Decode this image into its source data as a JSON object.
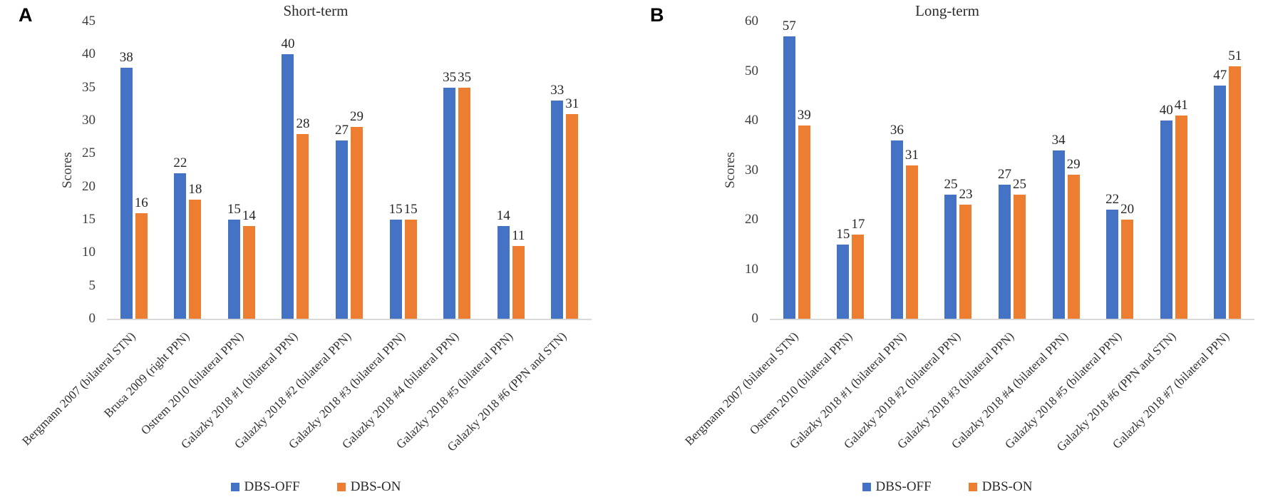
{
  "figure": {
    "ylabel_text": "Scores"
  },
  "chart_data": [
    {
      "type": "bar",
      "panel_label": "A",
      "title": "Short-term",
      "ylabel": "Scores",
      "ylim": [
        0,
        45
      ],
      "y_step": 5,
      "grid": false,
      "legend_position": "bottom",
      "categories": [
        "Bergmann 2007 (bilateral STN)",
        "Brusa 2009 (right PPN)",
        "Ostrem 2010 (bilateral PPN)",
        "Galazky 2018 #1 (bilateral PPN)",
        "Galazky 2018 #2 (bilateral PPN)",
        "Galazky 2018 #3 (bilateral PPN)",
        "Galazky 2018 #4 (bilateral PPN)",
        "Galazky 2018 #5 (bilateral PPN)",
        "Galazky 2018 #6 (PPN and STN)"
      ],
      "series": [
        {
          "name": "DBS-OFF",
          "color": "#4472C4",
          "values": [
            38,
            22,
            15,
            40,
            27,
            15,
            35,
            14,
            33
          ]
        },
        {
          "name": "DBS-ON",
          "color": "#ED7D31",
          "values": [
            16,
            18,
            14,
            28,
            29,
            15,
            35,
            11,
            31
          ]
        }
      ]
    },
    {
      "type": "bar",
      "panel_label": "B",
      "title": "Long-term",
      "ylabel": "Scores",
      "ylim": [
        0,
        60
      ],
      "y_step": 10,
      "grid": false,
      "legend_position": "bottom",
      "categories": [
        "Bergmann 2007 (bilateral STN)",
        "Ostrem 2010 (bilateral PPN)",
        "Galazky 2018 #1 (bilateral PPN)",
        "Galazky 2018 #2 (bilateral PPN)",
        "Galazky 2018 #3 (bilateral PPN)",
        "Galazky 2018 #4 (bilateral PPN)",
        "Galazky 2018 #5 (bilateral PPN)",
        "Galazky 2018 #6 (PPN and STN)",
        "Galazky 2018 #7 (bilateral PPN)"
      ],
      "series": [
        {
          "name": "DBS-OFF",
          "color": "#4472C4",
          "values": [
            57,
            15,
            36,
            25,
            27,
            34,
            22,
            40,
            47
          ]
        },
        {
          "name": "DBS-ON",
          "color": "#ED7D31",
          "values": [
            39,
            17,
            31,
            23,
            25,
            29,
            20,
            41,
            51
          ]
        }
      ]
    }
  ],
  "colors": {
    "dbs_off": "#4472C4",
    "dbs_on": "#ED7D31",
    "axis_line": "#D9D9D9",
    "text": "#2B2B2B"
  }
}
